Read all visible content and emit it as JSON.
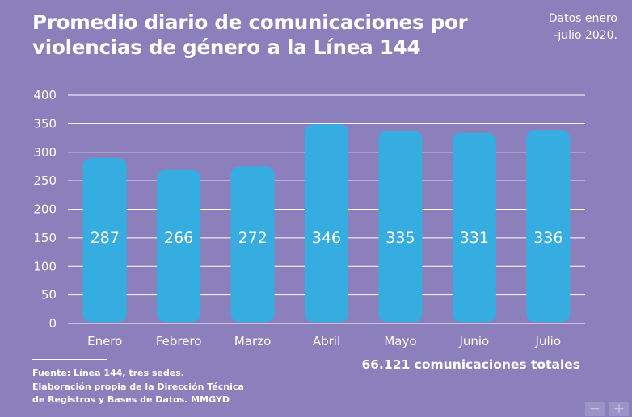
{
  "title_lines": [
    "Promedio diario de comunicaciones por",
    "violencias de género a la Línea 144"
  ],
  "period_lines": [
    "Datos enero",
    "-julio 2020."
  ],
  "chart_data": {
    "type": "bar",
    "categories": [
      "Enero",
      "Febrero",
      "Marzo",
      "Abril",
      "Mayo",
      "Junio",
      "Julio"
    ],
    "values": [
      287,
      266,
      272,
      346,
      335,
      331,
      336
    ],
    "value_labels": [
      "287",
      "266",
      "272",
      "346",
      "335",
      "331",
      "336"
    ],
    "yticks": [
      0,
      50,
      100,
      150,
      200,
      250,
      300,
      350,
      400
    ],
    "ylim": [
      0,
      400
    ],
    "grid": true,
    "xlabel": "",
    "ylabel": "",
    "bar_color": "#35ade0",
    "grid_color": "#ffffff"
  },
  "source_lines": [
    "Fuente: Línea 144, tres sedes.",
    "Elaboración propia de la Dirección Técnica",
    "de Registros y Bases de Datos. MMGYD"
  ],
  "total_text": "66.121 comunicaciones totales",
  "zoom": {
    "minus": "−",
    "plus": "+"
  },
  "colors": {
    "background": "#8b80bb",
    "bar": "#35ade0",
    "text": "#ffffff"
  }
}
